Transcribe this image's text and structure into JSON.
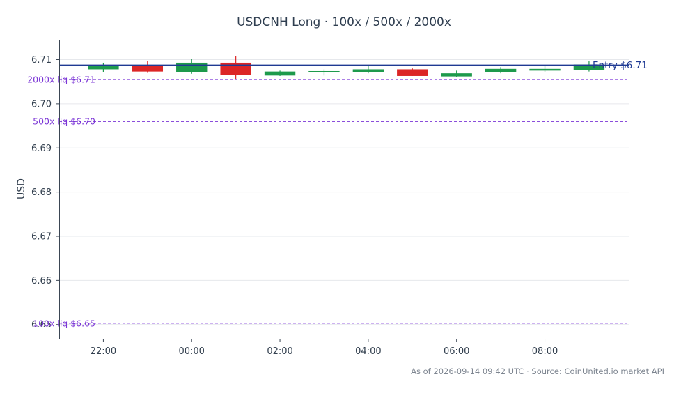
{
  "chart_data": {
    "type": "candlestick",
    "title": "USDCNH Long · 100x / 500x / 2000x",
    "ylabel": "USD",
    "xlabel": "",
    "ylim": [
      6.6468,
      6.7145
    ],
    "yticks": [
      "6.65",
      "6.66",
      "6.67",
      "6.68",
      "6.69",
      "6.70",
      "6.71"
    ],
    "xticks": [
      {
        "label": "22:00",
        "hour": 22
      },
      {
        "label": "00:00",
        "hour": 24
      },
      {
        "label": "02:00",
        "hour": 26
      },
      {
        "label": "04:00",
        "hour": 28
      },
      {
        "label": "06:00",
        "hour": 30
      },
      {
        "label": "08:00",
        "hour": 32
      }
    ],
    "xlim_hours": [
      21,
      33.9
    ],
    "candles": [
      {
        "hour": 22,
        "open": 6.7078,
        "high": 6.7093,
        "low": 6.7071,
        "close": 6.7085
      },
      {
        "hour": 23,
        "open": 6.7088,
        "high": 6.7097,
        "low": 6.707,
        "close": 6.7073
      },
      {
        "hour": 24,
        "open": 6.7072,
        "high": 6.7102,
        "low": 6.7068,
        "close": 6.7093
      },
      {
        "hour": 25,
        "open": 6.7093,
        "high": 6.7108,
        "low": 6.7055,
        "close": 6.7065
      },
      {
        "hour": 26,
        "open": 6.7064,
        "high": 6.7075,
        "low": 6.7063,
        "close": 6.7073
      },
      {
        "hour": 27,
        "open": 6.7071,
        "high": 6.7078,
        "low": 6.7064,
        "close": 6.7074
      },
      {
        "hour": 28,
        "open": 6.7072,
        "high": 6.7085,
        "low": 6.7069,
        "close": 6.7078
      },
      {
        "hour": 29,
        "open": 6.7078,
        "high": 6.708,
        "low": 6.7063,
        "close": 6.7063
      },
      {
        "hour": 30,
        "open": 6.7062,
        "high": 6.7075,
        "low": 6.7061,
        "close": 6.7069
      },
      {
        "hour": 31,
        "open": 6.7071,
        "high": 6.7083,
        "low": 6.7069,
        "close": 6.7079
      },
      {
        "hour": 32,
        "open": 6.7075,
        "high": 6.7087,
        "low": 6.7072,
        "close": 6.7079
      },
      {
        "hour": 33,
        "open": 6.7076,
        "high": 6.7096,
        "low": 6.7073,
        "close": 6.7089
      }
    ],
    "entry": {
      "price": 6.7087,
      "label": "Entry $6.71"
    },
    "liquidations": [
      {
        "price": 6.7055,
        "label": "2000x liq $6.71"
      },
      {
        "price": 6.696,
        "label": "500x liq $6.70"
      },
      {
        "price": 6.6503,
        "label": "100x liq $6.65"
      }
    ],
    "grid": true,
    "colors": {
      "up": "#1e9a4c",
      "down": "#dc2626",
      "entry": "#1f3a93",
      "liquidation": "#7b35d6",
      "grid": "#e6e8ec",
      "axis": "#3b4654"
    },
    "footer": "As of 2026-09-14 09:42 UTC · Source: CoinUnited.io market API"
  }
}
